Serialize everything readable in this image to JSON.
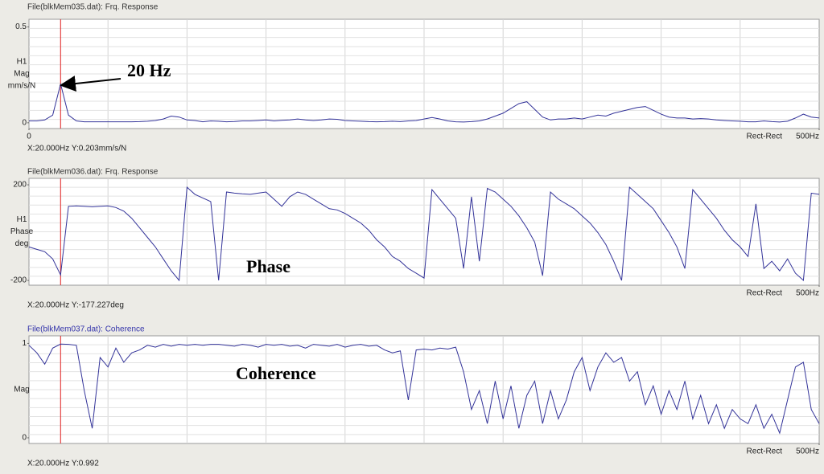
{
  "chart_data": [
    {
      "type": "line",
      "title": "File(blkMem035.dat): Frq. Response",
      "title_color": "#333333",
      "ylabel": [
        "H1",
        "Mag",
        "mm/s/N"
      ],
      "window": "Rect-Rect",
      "readout": "X:20.000Hz Y:0.203mm/s/N",
      "annotation": "20 Hz",
      "cursor_x": 20,
      "color": "#333399",
      "grid": true,
      "xlim": [
        0,
        500
      ],
      "xticks": [
        0,
        {
          "value": 500,
          "label": "500Hz"
        }
      ],
      "ylim": [
        -0.03,
        0.54
      ],
      "yticks": [
        0,
        0.5
      ],
      "x": [
        0,
        5,
        10,
        15,
        20,
        25,
        30,
        35,
        40,
        45,
        50,
        55,
        60,
        65,
        70,
        75,
        80,
        85,
        90,
        95,
        100,
        105,
        110,
        115,
        120,
        125,
        130,
        135,
        140,
        145,
        150,
        155,
        160,
        165,
        170,
        175,
        180,
        185,
        190,
        195,
        200,
        205,
        210,
        215,
        220,
        225,
        230,
        235,
        240,
        245,
        250,
        255,
        260,
        265,
        270,
        275,
        280,
        285,
        290,
        295,
        300,
        305,
        310,
        315,
        320,
        325,
        330,
        335,
        340,
        345,
        350,
        355,
        360,
        365,
        370,
        375,
        380,
        385,
        390,
        395,
        400,
        405,
        410,
        415,
        420,
        425,
        430,
        435,
        440,
        445,
        450,
        455,
        460,
        465,
        470,
        475,
        480,
        485,
        490,
        495,
        500
      ],
      "values": [
        0.01,
        0.01,
        0.015,
        0.04,
        0.203,
        0.04,
        0.01,
        0.005,
        0.005,
        0.005,
        0.005,
        0.005,
        0.005,
        0.005,
        0.006,
        0.008,
        0.012,
        0.02,
        0.035,
        0.03,
        0.015,
        0.012,
        0.005,
        0.01,
        0.008,
        0.005,
        0.007,
        0.01,
        0.01,
        0.012,
        0.015,
        0.01,
        0.013,
        0.015,
        0.02,
        0.015,
        0.012,
        0.015,
        0.02,
        0.018,
        0.012,
        0.01,
        0.008,
        0.006,
        0.005,
        0.006,
        0.008,
        0.006,
        0.01,
        0.012,
        0.02,
        0.028,
        0.02,
        0.01,
        0.005,
        0.004,
        0.006,
        0.01,
        0.02,
        0.035,
        0.05,
        0.075,
        0.1,
        0.11,
        0.07,
        0.03,
        0.015,
        0.02,
        0.02,
        0.025,
        0.02,
        0.03,
        0.04,
        0.035,
        0.05,
        0.06,
        0.07,
        0.08,
        0.085,
        0.065,
        0.045,
        0.03,
        0.025,
        0.025,
        0.02,
        0.022,
        0.02,
        0.015,
        0.012,
        0.01,
        0.008,
        0.005,
        0.005,
        0.01,
        0.006,
        0.004,
        0.008,
        0.025,
        0.045,
        0.03,
        0.025
      ]
    },
    {
      "type": "line",
      "title": "File(blkMem036.dat): Frq. Response",
      "title_color": "#333333",
      "ylabel": [
        "H1",
        "Phase",
        "deg"
      ],
      "window": "Rect-Rect",
      "readout": "X:20.000Hz Y:-177.227deg",
      "annotation": "Phase",
      "cursor_x": 20,
      "color": "#333399",
      "grid": true,
      "xlim": [
        0,
        500
      ],
      "xticks": [
        {
          "value": 500,
          "label": "500Hz"
        }
      ],
      "ylim": [
        -220,
        227
      ],
      "yticks": [
        -200,
        200
      ],
      "x": [
        0,
        5,
        10,
        15,
        20,
        25,
        30,
        35,
        40,
        45,
        50,
        55,
        60,
        65,
        70,
        75,
        80,
        85,
        90,
        95,
        100,
        105,
        110,
        115,
        120,
        125,
        130,
        135,
        140,
        145,
        150,
        155,
        160,
        165,
        170,
        175,
        180,
        185,
        190,
        195,
        200,
        205,
        210,
        215,
        220,
        225,
        230,
        235,
        240,
        245,
        250,
        255,
        260,
        265,
        270,
        275,
        280,
        285,
        290,
        295,
        300,
        305,
        310,
        315,
        320,
        325,
        330,
        335,
        340,
        345,
        350,
        355,
        360,
        365,
        370,
        375,
        380,
        385,
        390,
        395,
        400,
        405,
        410,
        415,
        420,
        425,
        430,
        435,
        440,
        445,
        450,
        455,
        460,
        465,
        470,
        475,
        480,
        485,
        490,
        495,
        500
      ],
      "values": [
        -60,
        -70,
        -80,
        -110,
        -177.227,
        110,
        112,
        110,
        108,
        110,
        112,
        105,
        90,
        60,
        20,
        -20,
        -60,
        -110,
        -160,
        -200,
        190,
        160,
        145,
        130,
        -200,
        170,
        165,
        162,
        160,
        165,
        170,
        140,
        110,
        150,
        170,
        160,
        140,
        120,
        100,
        95,
        80,
        60,
        40,
        10,
        -30,
        -60,
        -100,
        -120,
        -150,
        -170,
        -190,
        180,
        140,
        100,
        60,
        -150,
        150,
        -120,
        185,
        170,
        140,
        110,
        70,
        20,
        -40,
        -180,
        170,
        140,
        120,
        100,
        70,
        40,
        0,
        -50,
        -120,
        -200,
        190,
        160,
        130,
        100,
        50,
        0,
        -60,
        -150,
        180,
        140,
        100,
        60,
        10,
        -30,
        -60,
        -100,
        120,
        -150,
        -120,
        -160,
        -110,
        -170,
        -200,
        165,
        160
      ]
    },
    {
      "type": "line",
      "title": "File(blkMem037.dat): Coherence",
      "title_color": "#3333aa",
      "ylabel": [
        "Mag"
      ],
      "window": "Rect-Rect",
      "readout": "X:20.000Hz Y:0.992",
      "annotation": "Coherence",
      "cursor_x": 20,
      "color": "#333399",
      "grid": true,
      "xlim": [
        0,
        500
      ],
      "xticks": [
        {
          "value": 500,
          "label": "500Hz"
        }
      ],
      "ylim": [
        -0.06,
        1.08
      ],
      "yticks": [
        0,
        1
      ],
      "x": [
        0,
        5,
        10,
        15,
        20,
        25,
        30,
        35,
        40,
        45,
        50,
        55,
        60,
        65,
        70,
        75,
        80,
        85,
        90,
        95,
        100,
        105,
        110,
        115,
        120,
        125,
        130,
        135,
        140,
        145,
        150,
        155,
        160,
        165,
        170,
        175,
        180,
        185,
        190,
        195,
        200,
        205,
        210,
        215,
        220,
        225,
        230,
        235,
        240,
        245,
        250,
        255,
        260,
        265,
        270,
        275,
        280,
        285,
        290,
        295,
        300,
        305,
        310,
        315,
        320,
        325,
        330,
        335,
        340,
        345,
        350,
        355,
        360,
        365,
        370,
        375,
        380,
        385,
        390,
        395,
        400,
        405,
        410,
        415,
        420,
        425,
        430,
        435,
        440,
        445,
        450,
        455,
        460,
        465,
        470,
        475,
        480,
        485,
        490,
        495,
        500
      ],
      "values": [
        0.98,
        0.9,
        0.78,
        0.95,
        0.992,
        0.99,
        0.98,
        0.5,
        0.1,
        0.85,
        0.75,
        0.95,
        0.8,
        0.9,
        0.93,
        0.98,
        0.96,
        0.99,
        0.97,
        0.99,
        0.98,
        0.99,
        0.98,
        0.99,
        0.99,
        0.98,
        0.97,
        0.99,
        0.98,
        0.96,
        0.99,
        0.98,
        0.99,
        0.97,
        0.98,
        0.95,
        0.99,
        0.98,
        0.97,
        0.99,
        0.96,
        0.98,
        0.99,
        0.97,
        0.98,
        0.93,
        0.9,
        0.92,
        0.4,
        0.93,
        0.94,
        0.93,
        0.95,
        0.94,
        0.96,
        0.7,
        0.3,
        0.5,
        0.15,
        0.6,
        0.2,
        0.55,
        0.1,
        0.45,
        0.6,
        0.15,
        0.5,
        0.2,
        0.4,
        0.7,
        0.85,
        0.5,
        0.75,
        0.9,
        0.8,
        0.85,
        0.6,
        0.7,
        0.35,
        0.55,
        0.25,
        0.5,
        0.3,
        0.6,
        0.2,
        0.45,
        0.15,
        0.35,
        0.1,
        0.3,
        0.2,
        0.15,
        0.35,
        0.1,
        0.25,
        0.05,
        0.4,
        0.75,
        0.8,
        0.3,
        0.15
      ]
    }
  ]
}
